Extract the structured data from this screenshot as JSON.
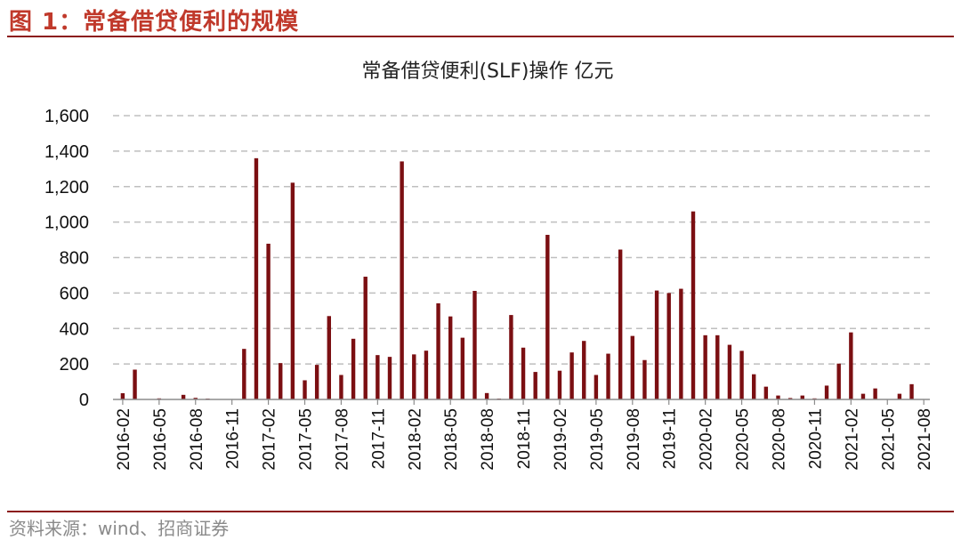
{
  "figure_title": "图 1：常备借贷便利的规模",
  "source": "资料来源：wind、招商证券",
  "colors": {
    "bar": "#7b0f12",
    "accent": "#c0392b",
    "rule": "#8b1a1a",
    "grid": "#bfbfbf"
  },
  "chart_data": {
    "type": "bar",
    "title": "常备借贷便利(SLF)操作 亿元",
    "ylabel": "",
    "xlabel": "",
    "ylim": [
      0,
      1600
    ],
    "yticks": [
      0,
      200,
      400,
      600,
      800,
      1000,
      1200,
      1400,
      1600
    ],
    "ytick_labels": [
      "0",
      "200",
      "400",
      "600",
      "800",
      "1,000",
      "1,200",
      "1,400",
      "1,600"
    ],
    "xtick_labels": [
      "2016-02",
      "2016-05",
      "2016-08",
      "2016-11",
      "2017-02",
      "2017-05",
      "2017-08",
      "2017-11",
      "2018-02",
      "2018-05",
      "2018-08",
      "2018-11",
      "2019-02",
      "2019-05",
      "2019-08",
      "2019-11",
      "2020-02",
      "2020-05",
      "2020-08",
      "2020-11",
      "2021-02",
      "2021-05",
      "2021-08"
    ],
    "grid": true,
    "legend": "none",
    "categories": [
      "2016-02",
      "2016-03",
      "2016-04",
      "2016-05",
      "2016-06",
      "2016-07",
      "2016-08",
      "2016-09",
      "2016-10",
      "2016-11",
      "2016-12",
      "2017-01",
      "2017-02",
      "2017-03",
      "2017-04",
      "2017-05",
      "2017-06",
      "2017-07",
      "2017-08",
      "2017-09",
      "2017-10",
      "2017-11",
      "2017-12",
      "2018-01",
      "2018-02",
      "2018-03",
      "2018-04",
      "2018-05",
      "2018-06",
      "2018-07",
      "2018-08",
      "2018-09",
      "2018-10",
      "2018-11",
      "2018-12",
      "2019-01",
      "2019-02",
      "2019-03",
      "2019-04",
      "2019-05",
      "2019-06",
      "2019-07",
      "2019-08",
      "2019-09",
      "2019-10",
      "2019-11",
      "2019-12",
      "2020-01",
      "2020-02",
      "2020-03",
      "2020-04",
      "2020-05",
      "2020-06",
      "2020-07",
      "2020-08",
      "2020-09",
      "2020-10",
      "2020-11",
      "2020-12",
      "2021-01",
      "2021-02",
      "2021-03",
      "2021-04",
      "2021-05",
      "2021-06",
      "2021-07",
      "2021-08"
    ],
    "values": [
      35,
      168,
      0,
      6,
      0,
      26,
      9,
      5,
      2,
      0,
      285,
      1360,
      878,
      205,
      1222,
      108,
      195,
      470,
      138,
      342,
      692,
      250,
      240,
      1342,
      254,
      275,
      542,
      468,
      348,
      612,
      36,
      5,
      476,
      292,
      155,
      928,
      162,
      265,
      330,
      138,
      258,
      845,
      358,
      222,
      614,
      600,
      624,
      1060,
      362,
      362,
      308,
      274,
      142,
      72,
      22,
      8,
      22,
      6,
      78,
      202,
      378,
      32,
      62,
      0,
      32,
      86,
      0
    ]
  }
}
